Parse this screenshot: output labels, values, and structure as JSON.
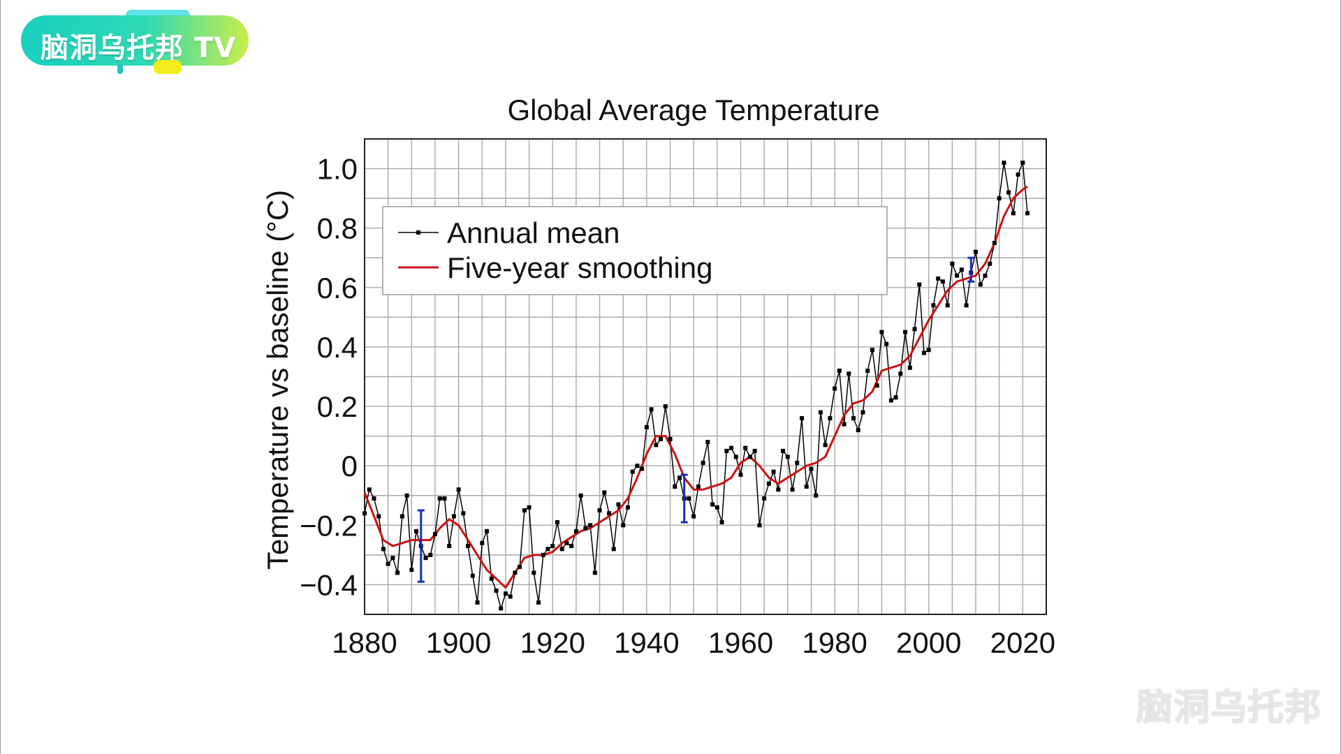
{
  "logo": {
    "text": "脑洞乌托邦 TV"
  },
  "watermark": {
    "text": "脑洞乌托邦"
  },
  "chart_data": {
    "type": "line",
    "title": "Global Average Temperature",
    "xlabel": "",
    "ylabel": "Temperature vs baseline (°C)",
    "xlim": [
      1880,
      2025
    ],
    "ylim": [
      -0.5,
      1.1
    ],
    "x_ticks": [
      1880,
      1900,
      1920,
      1940,
      1960,
      1980,
      2000,
      2020
    ],
    "x_tick_labels": [
      "1880",
      "1900",
      "1920",
      "1940",
      "1960",
      "1980",
      "2000",
      "2020"
    ],
    "y_ticks": [
      -0.4,
      -0.2,
      0,
      0.2,
      0.4,
      0.6,
      0.8,
      1.0
    ],
    "y_tick_labels": [
      "−0.4",
      "−0.2",
      "0",
      "0.2",
      "0.4",
      "0.6",
      "0.8",
      "1.0"
    ],
    "grid": true,
    "legend_position": "top-left",
    "series": [
      {
        "name": "Annual mean",
        "color": "#000000",
        "marker": "square",
        "x": [
          1880,
          1881,
          1882,
          1883,
          1884,
          1885,
          1886,
          1887,
          1888,
          1889,
          1890,
          1891,
          1892,
          1893,
          1894,
          1895,
          1896,
          1897,
          1898,
          1899,
          1900,
          1901,
          1902,
          1903,
          1904,
          1905,
          1906,
          1907,
          1908,
          1909,
          1910,
          1911,
          1912,
          1913,
          1914,
          1915,
          1916,
          1917,
          1918,
          1919,
          1920,
          1921,
          1922,
          1923,
          1924,
          1925,
          1926,
          1927,
          1928,
          1929,
          1930,
          1931,
          1932,
          1933,
          1934,
          1935,
          1936,
          1937,
          1938,
          1939,
          1940,
          1941,
          1942,
          1943,
          1944,
          1945,
          1946,
          1947,
          1948,
          1949,
          1950,
          1951,
          1952,
          1953,
          1954,
          1955,
          1956,
          1957,
          1958,
          1959,
          1960,
          1961,
          1962,
          1963,
          1964,
          1965,
          1966,
          1967,
          1968,
          1969,
          1970,
          1971,
          1972,
          1973,
          1974,
          1975,
          1976,
          1977,
          1978,
          1979,
          1980,
          1981,
          1982,
          1983,
          1984,
          1985,
          1986,
          1987,
          1988,
          1989,
          1990,
          1991,
          1992,
          1993,
          1994,
          1995,
          1996,
          1997,
          1998,
          1999,
          2000,
          2001,
          2002,
          2003,
          2004,
          2005,
          2006,
          2007,
          2008,
          2009,
          2010,
          2011,
          2012,
          2013,
          2014,
          2015,
          2016,
          2017,
          2018,
          2019,
          2020,
          2021
        ],
        "values": [
          -0.16,
          -0.08,
          -0.11,
          -0.17,
          -0.28,
          -0.33,
          -0.31,
          -0.36,
          -0.17,
          -0.1,
          -0.35,
          -0.22,
          -0.27,
          -0.31,
          -0.3,
          -0.23,
          -0.11,
          -0.11,
          -0.27,
          -0.17,
          -0.08,
          -0.16,
          -0.27,
          -0.37,
          -0.46,
          -0.26,
          -0.22,
          -0.38,
          -0.42,
          -0.48,
          -0.43,
          -0.44,
          -0.36,
          -0.34,
          -0.15,
          -0.14,
          -0.36,
          -0.46,
          -0.3,
          -0.28,
          -0.27,
          -0.19,
          -0.28,
          -0.26,
          -0.27,
          -0.22,
          -0.1,
          -0.21,
          -0.2,
          -0.36,
          -0.15,
          -0.09,
          -0.16,
          -0.28,
          -0.13,
          -0.2,
          -0.14,
          -0.02,
          0.0,
          -0.01,
          0.13,
          0.19,
          0.07,
          0.09,
          0.2,
          0.09,
          -0.07,
          -0.04,
          -0.11,
          -0.11,
          -0.17,
          -0.07,
          0.01,
          0.08,
          -0.13,
          -0.14,
          -0.19,
          0.05,
          0.06,
          0.03,
          -0.03,
          0.06,
          0.03,
          0.05,
          -0.2,
          -0.11,
          -0.06,
          -0.02,
          -0.08,
          0.05,
          0.03,
          -0.08,
          0.01,
          0.16,
          -0.07,
          -0.01,
          -0.1,
          0.18,
          0.07,
          0.16,
          0.26,
          0.32,
          0.14,
          0.31,
          0.16,
          0.12,
          0.18,
          0.32,
          0.39,
          0.27,
          0.45,
          0.41,
          0.22,
          0.23,
          0.31,
          0.45,
          0.33,
          0.46,
          0.61,
          0.38,
          0.39,
          0.54,
          0.63,
          0.62,
          0.54,
          0.68,
          0.64,
          0.66,
          0.54,
          0.65,
          0.72,
          0.61,
          0.64,
          0.68,
          0.75,
          0.9,
          1.02,
          0.92,
          0.85,
          0.98,
          1.02,
          0.85
        ]
      },
      {
        "name": "Five-year smoothing",
        "color": "#cc1111",
        "x": [
          1880,
          1882,
          1884,
          1886,
          1888,
          1890,
          1892,
          1894,
          1896,
          1898,
          1900,
          1902,
          1904,
          1906,
          1908,
          1910,
          1912,
          1914,
          1916,
          1918,
          1920,
          1922,
          1924,
          1926,
          1928,
          1930,
          1932,
          1934,
          1936,
          1938,
          1940,
          1942,
          1944,
          1946,
          1948,
          1950,
          1952,
          1954,
          1956,
          1958,
          1960,
          1962,
          1964,
          1966,
          1968,
          1970,
          1972,
          1974,
          1976,
          1978,
          1980,
          1982,
          1984,
          1986,
          1988,
          1990,
          1992,
          1994,
          1996,
          1998,
          2000,
          2002,
          2004,
          2006,
          2008,
          2010,
          2012,
          2014,
          2016,
          2018,
          2020,
          2021
        ],
        "values": [
          -0.09,
          -0.17,
          -0.25,
          -0.27,
          -0.26,
          -0.25,
          -0.25,
          -0.25,
          -0.21,
          -0.18,
          -0.2,
          -0.25,
          -0.3,
          -0.35,
          -0.38,
          -0.41,
          -0.36,
          -0.31,
          -0.3,
          -0.3,
          -0.29,
          -0.26,
          -0.24,
          -0.22,
          -0.21,
          -0.19,
          -0.17,
          -0.15,
          -0.11,
          -0.04,
          0.04,
          0.1,
          0.1,
          0.04,
          -0.04,
          -0.08,
          -0.08,
          -0.07,
          -0.06,
          -0.04,
          0.01,
          0.03,
          0.0,
          -0.04,
          -0.06,
          -0.04,
          -0.02,
          0.0,
          0.01,
          0.03,
          0.1,
          0.17,
          0.21,
          0.22,
          0.25,
          0.32,
          0.33,
          0.34,
          0.37,
          0.43,
          0.49,
          0.54,
          0.59,
          0.62,
          0.63,
          0.64,
          0.68,
          0.75,
          0.84,
          0.9,
          0.93,
          0.94
        ]
      },
      {
        "name": "",
        "type": "error_bars",
        "color": "#1a2fb8",
        "points": [
          {
            "x": 1892,
            "low": -0.39,
            "high": -0.15
          },
          {
            "x": 1948,
            "low": -0.19,
            "high": -0.03
          },
          {
            "x": 2009,
            "low": 0.62,
            "high": 0.7
          }
        ]
      }
    ]
  }
}
